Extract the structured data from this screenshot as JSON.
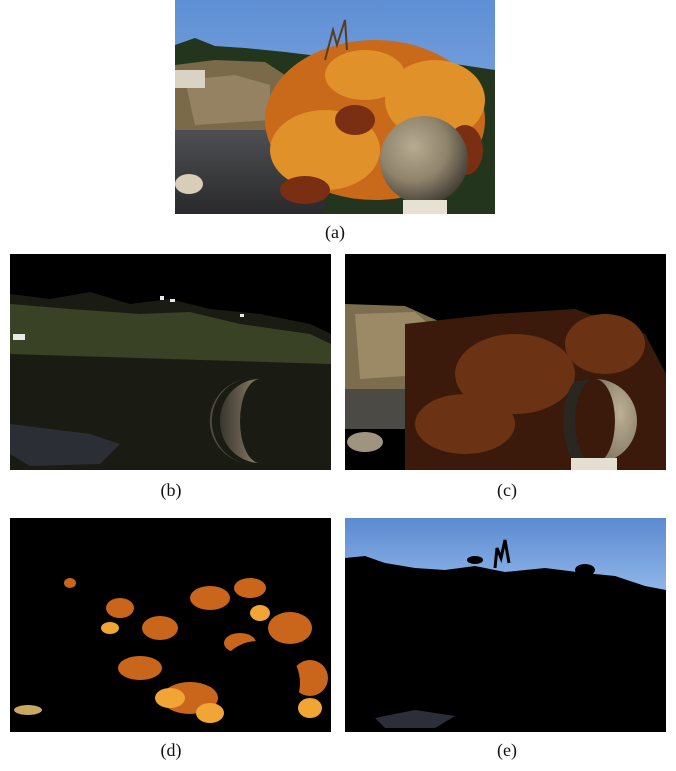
{
  "figure": {
    "panels": [
      {
        "label": "(a)",
        "content": "original photo"
      },
      {
        "label": "(b)",
        "content": "segment: rock and sphere shadow"
      },
      {
        "label": "(c)",
        "content": "segment: lit sphere, cliff, foliage"
      },
      {
        "label": "(d)",
        "content": "segment: orange leaves"
      },
      {
        "label": "(e)",
        "content": "segment: sky"
      }
    ]
  }
}
